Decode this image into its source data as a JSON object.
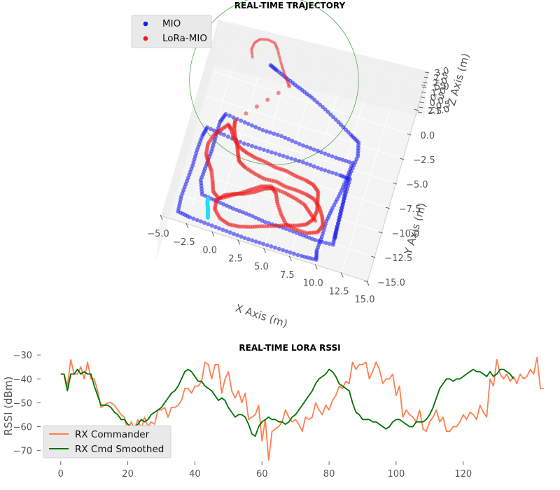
{
  "chart_data": [
    {
      "type": "scatter",
      "projection": "3d",
      "title": "REAL-TIME TRAJECTORY",
      "xlabel": "X Axis (m)",
      "ylabel": "Y Axis (m)",
      "zlabel": "Z Axis (m)",
      "x_ticks": [
        "−5.0",
        "−2.5",
        "0.0",
        "2.5",
        "5.0",
        "7.5",
        "10.0",
        "12.5",
        "15.0"
      ],
      "y_ticks": [
        "−15.0",
        "−12.5",
        "−10.0",
        "−7.5",
        "−5.0",
        "−2.5",
        "0.0",
        "2.5",
        "5.0"
      ],
      "z_ticks": [
        "−1.0",
        "−0.5",
        "0.0",
        "0.5",
        "1.0",
        "1.5",
        "2.0",
        "2.5",
        "3.0"
      ],
      "xlim": [
        -5,
        15
      ],
      "ylim": [
        -15,
        5
      ],
      "zlim": [
        -1,
        3
      ],
      "legend_position": "top-left",
      "series": [
        {
          "name": "MIO",
          "color": "#1a1aee",
          "points": [
            [
              0.8,
              2.3
            ],
            [
              1.5,
              2.0
            ],
            [
              2.7,
              1.5
            ],
            [
              4.0,
              1.0
            ],
            [
              5.3,
              0.5
            ],
            [
              6.8,
              -0.2
            ],
            [
              8.3,
              -1.0
            ],
            [
              9.7,
              -1.8
            ],
            [
              10.6,
              -2.3
            ],
            [
              10.9,
              -3.6
            ],
            [
              10.7,
              -5.2
            ],
            [
              10.6,
              -6.8
            ],
            [
              10.8,
              -8.3
            ],
            [
              10.9,
              -9.8
            ],
            [
              10.9,
              -11.4
            ],
            [
              11.0,
              -12.6
            ],
            [
              9.3,
              -12.7
            ],
            [
              7.8,
              -12.6
            ],
            [
              6.1,
              -12.5
            ],
            [
              4.4,
              -12.5
            ],
            [
              2.8,
              -12.3
            ],
            [
              1.2,
              -12.2
            ],
            [
              -0.4,
              -12.0
            ],
            [
              -1.9,
              -11.8
            ],
            [
              -2.4,
              -10.5
            ],
            [
              -2.3,
              -9.0
            ],
            [
              -2.2,
              -7.5
            ],
            [
              -2.2,
              -6.0
            ],
            [
              -2.2,
              -4.5
            ],
            [
              -1.9,
              -3.6
            ],
            [
              0.0,
              -3.8
            ],
            [
              1.8,
              -4.0
            ],
            [
              3.6,
              -4.0
            ],
            [
              5.4,
              -4.2
            ],
            [
              7.2,
              -4.3
            ],
            [
              9.0,
              -4.4
            ],
            [
              10.6,
              -4.4
            ],
            [
              10.5,
              -6.0
            ],
            [
              10.3,
              -7.6
            ],
            [
              10.0,
              -9.2
            ],
            [
              9.8,
              -10.6
            ],
            [
              9.8,
              -12.2
            ],
            [
              9.7,
              -13.6
            ],
            [
              9.9,
              -14.5
            ],
            [
              8.5,
              -14.6
            ],
            [
              6.7,
              -14.6
            ],
            [
              4.8,
              -14.6
            ],
            [
              3.0,
              -14.6
            ],
            [
              1.2,
              -14.5
            ],
            [
              -0.6,
              -14.4
            ],
            [
              -2.4,
              -14.3
            ],
            [
              -3.6,
              -14.1
            ],
            [
              -3.7,
              -12.6
            ],
            [
              -3.6,
              -11.0
            ],
            [
              -3.5,
              -9.4
            ],
            [
              -3.5,
              -7.8
            ],
            [
              -3.4,
              -6.3
            ],
            [
              -3.2,
              -5.4
            ],
            [
              -1.5,
              -5.6
            ],
            [
              0.5,
              -5.8
            ],
            [
              2.4,
              -5.8
            ],
            [
              4.3,
              -5.8
            ],
            [
              6.2,
              -5.8
            ],
            [
              8.0,
              -5.9
            ],
            [
              9.8,
              -5.9
            ],
            [
              10.8,
              -6.0
            ],
            [
              10.8,
              -7.6
            ],
            [
              10.8,
              -9.2
            ],
            [
              10.9,
              -10.8
            ],
            [
              11.0,
              -11.9
            ]
          ]
        },
        {
          "name": "LoRa-MIO",
          "color": "#ee1a1a",
          "points": [
            [
              -1.0,
              2.5
            ],
            [
              -1.3,
              3.2
            ],
            [
              -1.2,
              3.9
            ],
            [
              -0.8,
              4.4
            ],
            [
              -0.1,
              4.6
            ],
            [
              0.6,
              4.5
            ],
            [
              1.0,
              4.0
            ],
            [
              1.4,
              3.3
            ],
            [
              1.8,
              2.6
            ],
            [
              2.2,
              2.0
            ],
            [
              2.6,
              1.4
            ],
            [
              3.0,
              0.9
            ],
            [
              -0.9,
              -3.9
            ],
            [
              -0.8,
              -4.6
            ],
            [
              -0.5,
              -5.4
            ],
            [
              -0.1,
              -6.1
            ],
            [
              0.2,
              -6.9
            ],
            [
              0.5,
              -7.6
            ],
            [
              1.2,
              -8.0
            ],
            [
              2.2,
              -8.3
            ],
            [
              3.2,
              -8.5
            ],
            [
              4.3,
              -8.4
            ],
            [
              5.3,
              -8.6
            ],
            [
              6.3,
              -8.6
            ],
            [
              7.3,
              -8.7
            ],
            [
              8.1,
              -8.9
            ],
            [
              8.8,
              -9.5
            ],
            [
              9.3,
              -10.3
            ],
            [
              9.6,
              -11.1
            ],
            [
              9.3,
              -11.9
            ],
            [
              8.4,
              -12.3
            ],
            [
              7.3,
              -12.3
            ],
            [
              6.3,
              -12.1
            ],
            [
              5.6,
              -11.3
            ],
            [
              5.0,
              -10.4
            ],
            [
              4.6,
              -9.5
            ],
            [
              4.0,
              -9.0
            ],
            [
              3.1,
              -9.3
            ],
            [
              2.3,
              -9.9
            ],
            [
              1.5,
              -10.5
            ],
            [
              0.6,
              -11.1
            ],
            [
              -0.3,
              -11.7
            ],
            [
              -1.0,
              -11.2
            ],
            [
              -1.3,
              -10.3
            ],
            [
              -1.7,
              -9.3
            ],
            [
              -2.2,
              -8.6
            ],
            [
              -2.6,
              -7.9
            ],
            [
              -2.7,
              -6.9
            ],
            [
              -2.4,
              -5.9
            ],
            [
              -1.9,
              -5.2
            ],
            [
              -1.4,
              -4.5
            ],
            [
              -1.0,
              -4.9
            ],
            [
              -0.5,
              -5.7
            ],
            [
              0.2,
              -6.3
            ],
            [
              1.0,
              -6.6
            ],
            [
              1.9,
              -6.8
            ],
            [
              2.9,
              -6.9
            ],
            [
              3.9,
              -7.1
            ],
            [
              4.9,
              -7.1
            ],
            [
              5.9,
              -7.3
            ],
            [
              6.9,
              -7.4
            ],
            [
              7.7,
              -7.6
            ],
            [
              8.3,
              -8.1
            ],
            [
              8.5,
              -9.0
            ],
            [
              8.7,
              -9.9
            ],
            [
              8.6,
              -10.8
            ],
            [
              8.1,
              -11.5
            ],
            [
              7.3,
              -11.9
            ],
            [
              6.3,
              -12.2
            ],
            [
              5.3,
              -12.6
            ],
            [
              4.2,
              -13.0
            ],
            [
              3.2,
              -13.4
            ],
            [
              2.2,
              -13.7
            ],
            [
              1.2,
              -13.8
            ],
            [
              0.3,
              -13.5
            ],
            [
              -0.4,
              -12.8
            ],
            [
              -0.5,
              -11.9
            ],
            [
              0.1,
              -11.2
            ],
            [
              0.9,
              -10.8
            ],
            [
              1.8,
              -10.5
            ],
            [
              2.7,
              -10.0
            ],
            [
              3.5,
              -9.4
            ],
            [
              4.3,
              -9.1
            ],
            [
              5.4,
              -9.2
            ],
            [
              6.4,
              -9.4
            ],
            [
              7.4,
              -9.7
            ],
            [
              8.1,
              -10.3
            ],
            [
              8.8,
              -10.9
            ]
          ]
        },
        {
          "name": "",
          "color": "#22ddff",
          "points": [
            [
              -1.3,
              -12.0
            ],
            [
              -1.2,
              -12.5
            ],
            [
              -1.0,
              -13.0
            ],
            [
              -0.9,
              -13.4
            ],
            [
              -0.8,
              -13.8
            ]
          ]
        }
      ],
      "circle": {
        "center": [
          1.5,
          1.0
        ],
        "radius": 7.8,
        "color": "#4cae4c"
      }
    },
    {
      "type": "line",
      "title": "REAL-TIME LORA RSSI",
      "xlabel": "",
      "ylabel": "RSSI (dBm)",
      "xlim": [
        -6,
        138
      ],
      "ylim": [
        -74.5,
        -28.5
      ],
      "x_ticks": [
        0,
        20,
        40,
        60,
        80,
        100,
        120
      ],
      "y_ticks": [
        -30,
        -40,
        -50,
        -60,
        -70
      ],
      "legend_position": "bottom-left",
      "series": [
        {
          "name": "RX Commander",
          "color": "#ff7f50",
          "values": [
            -38,
            -38,
            -43,
            -32,
            -38,
            -38,
            -35,
            -40,
            -33,
            -40,
            -40,
            -45,
            -52,
            -51,
            -50,
            -50,
            -51,
            -53,
            -55,
            -56,
            -62,
            -58,
            -61,
            -57,
            -61,
            -56,
            -60,
            -58,
            -59,
            -53,
            -53,
            -52,
            -56,
            -52,
            -52,
            -51,
            -49,
            -44,
            -44,
            -46,
            -43,
            -43,
            -41,
            -33,
            -34,
            -40,
            -34,
            -34,
            -46,
            -40,
            -37,
            -45,
            -48,
            -45,
            -50,
            -46,
            -57,
            -56,
            -55,
            -51,
            -66,
            -57,
            -74,
            -62,
            -61,
            -60,
            -58,
            -53,
            -56,
            -58,
            -57,
            -59,
            -62,
            -56,
            -57,
            -56,
            -50,
            -53,
            -55,
            -51,
            -53,
            -49,
            -47,
            -43,
            -44,
            -41,
            -42,
            -33,
            -36,
            -34,
            -34,
            -33,
            -40,
            -37,
            -33,
            -36,
            -42,
            -40,
            -40,
            -38,
            -47,
            -43,
            -56,
            -53,
            -55,
            -56,
            -58,
            -53,
            -61,
            -62,
            -58,
            -56,
            -53,
            -58,
            -56,
            -62,
            -62,
            -60,
            -60,
            -58,
            -55,
            -57,
            -54,
            -55,
            -57,
            -51,
            -54,
            -56,
            -40,
            -43,
            -32,
            -38,
            -40,
            -38,
            -41,
            -39,
            -42,
            -38,
            -40,
            -39,
            -36,
            -38,
            -31,
            -44,
            -44
          ]
        },
        {
          "name": "RX Cmd Smoothed",
          "color": "#007000",
          "values": [
            -38,
            -38,
            -45,
            -38,
            -38,
            -36,
            -38,
            -37,
            -38,
            -38,
            -43,
            -47,
            -51,
            -51,
            -51,
            -52,
            -54,
            -55,
            -57,
            -57,
            -59,
            -60,
            -60,
            -59,
            -57,
            -58,
            -57,
            -55,
            -54,
            -53,
            -52,
            -50,
            -48,
            -46,
            -45,
            -43,
            -40,
            -37,
            -36,
            -37,
            -39,
            -41,
            -41,
            -43,
            -44,
            -45,
            -47,
            -49,
            -48,
            -49,
            -52,
            -54,
            -56,
            -55,
            -55,
            -56,
            -59,
            -63,
            -64,
            -60,
            -58,
            -57,
            -56,
            -57,
            -57,
            -58,
            -58,
            -59,
            -58,
            -56,
            -55,
            -53,
            -51,
            -49,
            -47,
            -45,
            -42,
            -40,
            -39,
            -38,
            -36,
            -37,
            -39,
            -42,
            -43,
            -44,
            -45,
            -50,
            -54,
            -55,
            -57,
            -57,
            -57,
            -58,
            -58,
            -59,
            -60,
            -61,
            -60,
            -58,
            -57,
            -57,
            -58,
            -59,
            -60,
            -60,
            -58,
            -58,
            -58,
            -57,
            -55,
            -52,
            -48,
            -44,
            -42,
            -40,
            -40,
            -41,
            -40,
            -40,
            -39,
            -38,
            -37,
            -36,
            -37,
            -37,
            -38,
            -39,
            -37,
            -39,
            -38,
            -36,
            -36,
            -37,
            -38,
            -40
          ]
        }
      ]
    }
  ]
}
